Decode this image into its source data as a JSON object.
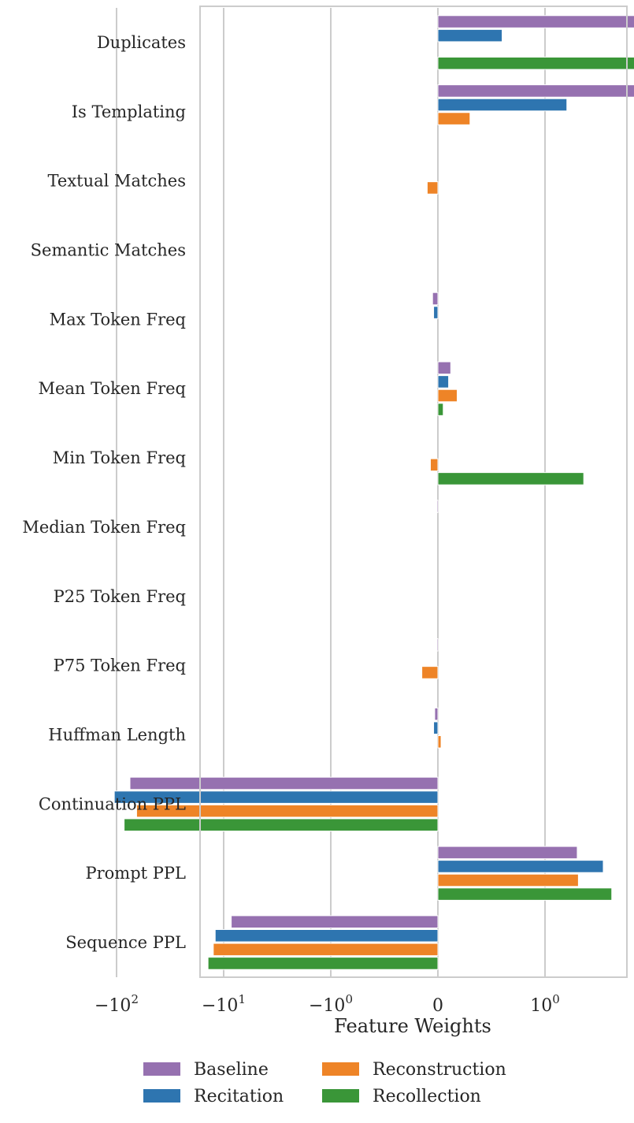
{
  "chart_data": {
    "type": "bar",
    "orientation": "horizontal",
    "xscale": "symlog",
    "xlabel": "Feature Weights",
    "ylabel": "",
    "xlim": [
      -120,
      22
    ],
    "grid": true,
    "legend_position": "bottom-center",
    "xticks": [
      {
        "value": -100,
        "base": "−",
        "mant": "10",
        "exp": "2"
      },
      {
        "value": -10,
        "base": "−",
        "mant": "10",
        "exp": "1"
      },
      {
        "value": -1,
        "base": "−",
        "mant": "10",
        "exp": "0"
      },
      {
        "value": 0,
        "base": "",
        "mant": "0",
        "exp": ""
      },
      {
        "value": 1,
        "base": "",
        "mant": "10",
        "exp": "0"
      },
      {
        "value": 10,
        "base": "",
        "mant": "10",
        "exp": "1"
      }
    ],
    "categories": [
      "Duplicates",
      "Is Templating",
      "Textual Matches",
      "Semantic Matches",
      "Max Token Freq",
      "Mean Token Freq",
      "Min Token Freq",
      "Median Token Freq",
      "P25 Token Freq",
      "P75 Token Freq",
      "Huffman Length",
      "Continuation PPL",
      "Prompt PPL",
      "Sequence PPL"
    ],
    "series": [
      {
        "name": "Baseline",
        "color": "#9671B0",
        "values": [
          17,
          9,
          0,
          0,
          -0.05,
          0.12,
          0,
          -0.01,
          0,
          -0.01,
          -0.03,
          -75,
          2.0,
          -8.5
        ]
      },
      {
        "name": "Recitation",
        "color": "#2E75B0",
        "values": [
          0.6,
          1.6,
          0,
          0,
          -0.04,
          0.1,
          0,
          0,
          0,
          0,
          -0.04,
          -105,
          3.5,
          -12
        ]
      },
      {
        "name": "Reconstruction",
        "color": "#EE8427",
        "values": [
          0,
          0.3,
          -0.1,
          0,
          0,
          0.18,
          -0.07,
          0,
          0,
          -0.15,
          0.03,
          -65,
          2.05,
          -12.5
        ]
      },
      {
        "name": "Recollection",
        "color": "#3A9638",
        "values": [
          10,
          0,
          0,
          0,
          0,
          0.05,
          2.3,
          0,
          0,
          0,
          0,
          -85,
          4.2,
          -14
        ]
      }
    ]
  }
}
